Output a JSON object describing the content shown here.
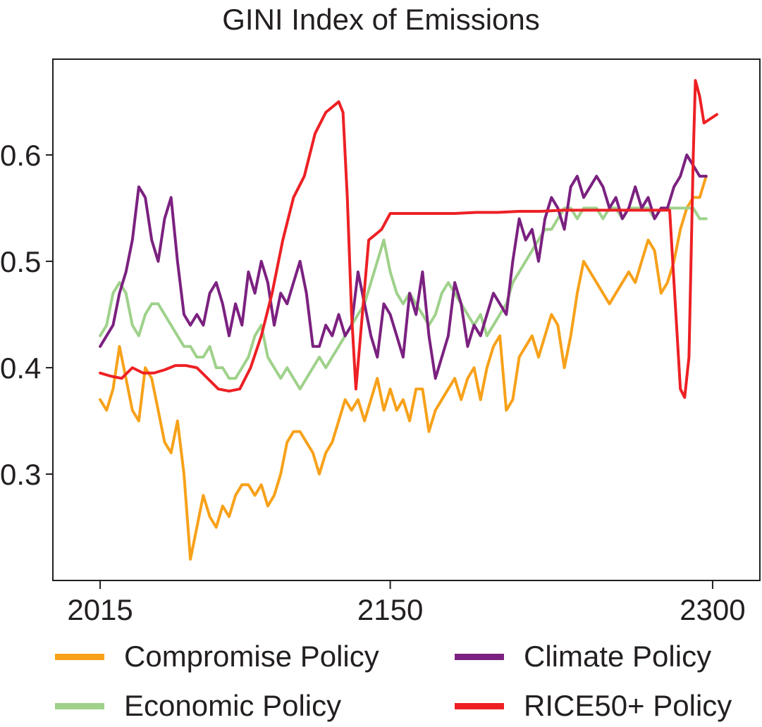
{
  "chart_data": {
    "type": "line",
    "title": "GINI Index of Emissions",
    "xlabel": "",
    "ylabel": "",
    "xlim": [
      1993,
      2322
    ],
    "ylim": [
      0.2,
      0.69
    ],
    "x_ticks": [
      2015,
      2150,
      2300
    ],
    "x_tick_labels": [
      "2015",
      "2150",
      "2300"
    ],
    "y_ticks": [
      0.3,
      0.4,
      0.5,
      0.6
    ],
    "y_tick_labels": [
      "0.3",
      "0.4",
      "0.5",
      "0.6"
    ],
    "grid": false,
    "legend_position": "bottom",
    "series": [
      {
        "name": "Compromise Policy",
        "color": "#f7a11a",
        "x": [
          2015,
          2018,
          2021,
          2024,
          2027,
          2030,
          2033,
          2036,
          2039,
          2042,
          2045,
          2048,
          2051,
          2054,
          2057,
          2060,
          2063,
          2066,
          2069,
          2072,
          2075,
          2078,
          2081,
          2084,
          2087,
          2090,
          2093,
          2096,
          2099,
          2102,
          2105,
          2108,
          2111,
          2114,
          2117,
          2120,
          2123,
          2126,
          2129,
          2132,
          2135,
          2138,
          2141,
          2144,
          2147,
          2150,
          2153,
          2156,
          2159,
          2162,
          2165,
          2168,
          2171,
          2174,
          2177,
          2180,
          2183,
          2186,
          2189,
          2192,
          2195,
          2198,
          2201,
          2204,
          2207,
          2210,
          2213,
          2216,
          2219,
          2222,
          2225,
          2228,
          2231,
          2234,
          2237,
          2240,
          2243,
          2246,
          2249,
          2252,
          2255,
          2258,
          2261,
          2264,
          2267,
          2270,
          2273,
          2276,
          2279,
          2282,
          2285,
          2288,
          2291,
          2294,
          2297
        ],
        "y": [
          0.37,
          0.36,
          0.38,
          0.42,
          0.39,
          0.36,
          0.35,
          0.4,
          0.39,
          0.36,
          0.33,
          0.32,
          0.35,
          0.3,
          0.22,
          0.25,
          0.28,
          0.26,
          0.25,
          0.27,
          0.26,
          0.28,
          0.29,
          0.29,
          0.28,
          0.29,
          0.27,
          0.28,
          0.3,
          0.33,
          0.34,
          0.34,
          0.33,
          0.32,
          0.3,
          0.32,
          0.33,
          0.35,
          0.37,
          0.36,
          0.37,
          0.35,
          0.37,
          0.39,
          0.36,
          0.38,
          0.36,
          0.37,
          0.35,
          0.38,
          0.38,
          0.34,
          0.36,
          0.37,
          0.38,
          0.39,
          0.37,
          0.39,
          0.4,
          0.37,
          0.4,
          0.42,
          0.43,
          0.36,
          0.37,
          0.41,
          0.42,
          0.43,
          0.41,
          0.43,
          0.45,
          0.44,
          0.4,
          0.43,
          0.47,
          0.5,
          0.49,
          0.48,
          0.47,
          0.46,
          0.47,
          0.48,
          0.49,
          0.48,
          0.5,
          0.52,
          0.51,
          0.47,
          0.48,
          0.5,
          0.53,
          0.55,
          0.56,
          0.56,
          0.58
        ]
      },
      {
        "name": "Climate Policy",
        "color": "#7b2180",
        "x": [
          2015,
          2018,
          2021,
          2024,
          2027,
          2030,
          2033,
          2036,
          2039,
          2042,
          2045,
          2048,
          2051,
          2054,
          2057,
          2060,
          2063,
          2066,
          2069,
          2072,
          2075,
          2078,
          2081,
          2084,
          2087,
          2090,
          2093,
          2096,
          2099,
          2102,
          2105,
          2108,
          2111,
          2114,
          2117,
          2120,
          2123,
          2126,
          2129,
          2132,
          2135,
          2138,
          2141,
          2144,
          2147,
          2150,
          2153,
          2156,
          2159,
          2162,
          2165,
          2168,
          2171,
          2174,
          2177,
          2180,
          2183,
          2186,
          2189,
          2192,
          2195,
          2198,
          2201,
          2204,
          2207,
          2210,
          2213,
          2216,
          2219,
          2222,
          2225,
          2228,
          2231,
          2234,
          2237,
          2240,
          2243,
          2246,
          2249,
          2252,
          2255,
          2258,
          2261,
          2264,
          2267,
          2270,
          2273,
          2276,
          2279,
          2282,
          2285,
          2288,
          2291,
          2294,
          2297
        ],
        "y": [
          0.42,
          0.43,
          0.44,
          0.47,
          0.49,
          0.52,
          0.57,
          0.56,
          0.52,
          0.5,
          0.54,
          0.56,
          0.5,
          0.45,
          0.44,
          0.45,
          0.44,
          0.47,
          0.48,
          0.46,
          0.43,
          0.46,
          0.44,
          0.49,
          0.47,
          0.5,
          0.48,
          0.44,
          0.47,
          0.46,
          0.48,
          0.5,
          0.47,
          0.42,
          0.42,
          0.44,
          0.43,
          0.45,
          0.43,
          0.44,
          0.49,
          0.46,
          0.43,
          0.41,
          0.46,
          0.45,
          0.43,
          0.41,
          0.47,
          0.45,
          0.49,
          0.43,
          0.39,
          0.41,
          0.43,
          0.48,
          0.46,
          0.42,
          0.44,
          0.43,
          0.45,
          0.47,
          0.46,
          0.45,
          0.5,
          0.54,
          0.52,
          0.53,
          0.5,
          0.54,
          0.56,
          0.55,
          0.53,
          0.57,
          0.58,
          0.56,
          0.57,
          0.58,
          0.57,
          0.55,
          0.56,
          0.54,
          0.55,
          0.57,
          0.55,
          0.56,
          0.54,
          0.55,
          0.55,
          0.57,
          0.58,
          0.6,
          0.59,
          0.58,
          0.58
        ]
      },
      {
        "name": "Economic Policy",
        "color": "#9fd18b",
        "x": [
          2015,
          2018,
          2021,
          2024,
          2027,
          2030,
          2033,
          2036,
          2039,
          2042,
          2045,
          2048,
          2051,
          2054,
          2057,
          2060,
          2063,
          2066,
          2069,
          2072,
          2075,
          2078,
          2081,
          2084,
          2087,
          2090,
          2093,
          2096,
          2099,
          2102,
          2105,
          2108,
          2111,
          2114,
          2117,
          2120,
          2123,
          2126,
          2129,
          2132,
          2135,
          2138,
          2141,
          2144,
          2147,
          2150,
          2153,
          2156,
          2159,
          2162,
          2165,
          2168,
          2171,
          2174,
          2177,
          2180,
          2183,
          2186,
          2189,
          2192,
          2195,
          2198,
          2201,
          2204,
          2207,
          2210,
          2213,
          2216,
          2219,
          2222,
          2225,
          2228,
          2231,
          2234,
          2237,
          2240,
          2243,
          2246,
          2249,
          2252,
          2255,
          2258,
          2261,
          2264,
          2267,
          2270,
          2273,
          2276,
          2279,
          2282,
          2285,
          2288,
          2291,
          2294,
          2297
        ],
        "y": [
          0.43,
          0.44,
          0.47,
          0.48,
          0.47,
          0.44,
          0.43,
          0.45,
          0.46,
          0.46,
          0.45,
          0.44,
          0.43,
          0.42,
          0.42,
          0.41,
          0.41,
          0.42,
          0.4,
          0.4,
          0.39,
          0.39,
          0.4,
          0.41,
          0.43,
          0.44,
          0.41,
          0.4,
          0.39,
          0.4,
          0.39,
          0.38,
          0.39,
          0.4,
          0.41,
          0.4,
          0.41,
          0.42,
          0.43,
          0.44,
          0.45,
          0.46,
          0.48,
          0.5,
          0.52,
          0.49,
          0.47,
          0.46,
          0.47,
          0.46,
          0.45,
          0.44,
          0.45,
          0.47,
          0.48,
          0.47,
          0.46,
          0.45,
          0.44,
          0.45,
          0.43,
          0.44,
          0.45,
          0.46,
          0.48,
          0.49,
          0.5,
          0.51,
          0.52,
          0.53,
          0.53,
          0.54,
          0.55,
          0.55,
          0.54,
          0.55,
          0.55,
          0.55,
          0.54,
          0.55,
          0.55,
          0.54,
          0.55,
          0.55,
          0.55,
          0.55,
          0.54,
          0.55,
          0.55,
          0.55,
          0.55,
          0.55,
          0.55,
          0.54,
          0.54
        ]
      },
      {
        "name": "RICE50+ Policy",
        "color": "#ed2024",
        "x": [
          2015,
          2020,
          2025,
          2030,
          2035,
          2040,
          2045,
          2050,
          2055,
          2060,
          2065,
          2070,
          2075,
          2080,
          2085,
          2090,
          2095,
          2100,
          2105,
          2110,
          2115,
          2120,
          2123,
          2126,
          2128,
          2130,
          2132,
          2134,
          2137,
          2140,
          2143,
          2146,
          2150,
          2160,
          2170,
          2180,
          2190,
          2200,
          2210,
          2220,
          2230,
          2240,
          2250,
          2260,
          2270,
          2280,
          2285,
          2287,
          2289,
          2291,
          2292,
          2294,
          2296,
          2302
        ],
        "y": [
          0.395,
          0.392,
          0.39,
          0.4,
          0.395,
          0.395,
          0.398,
          0.402,
          0.402,
          0.4,
          0.39,
          0.38,
          0.378,
          0.38,
          0.4,
          0.43,
          0.47,
          0.52,
          0.56,
          0.58,
          0.62,
          0.64,
          0.645,
          0.65,
          0.64,
          0.56,
          0.45,
          0.38,
          0.45,
          0.52,
          0.525,
          0.53,
          0.545,
          0.545,
          0.545,
          0.545,
          0.546,
          0.546,
          0.547,
          0.547,
          0.548,
          0.548,
          0.548,
          0.548,
          0.548,
          0.548,
          0.38,
          0.372,
          0.41,
          0.6,
          0.67,
          0.655,
          0.63,
          0.638
        ]
      }
    ]
  }
}
